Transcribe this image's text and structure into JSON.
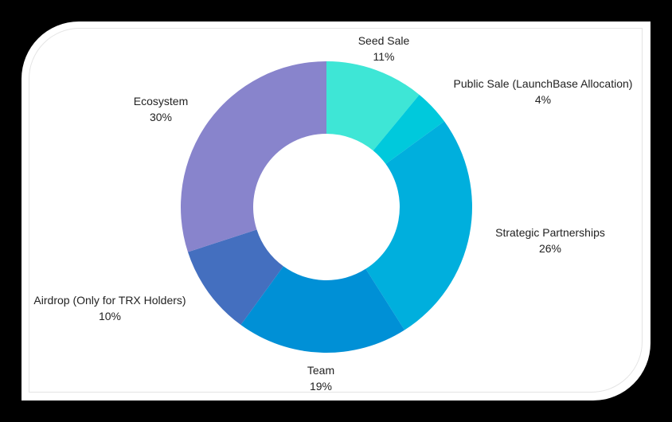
{
  "chart_data": {
    "type": "pie",
    "subtype": "donut",
    "title": "",
    "categories": [
      "Seed Sale",
      "Public Sale (LaunchBase Allocation)",
      "Strategic Partnerships",
      "Team",
      "Airdrop (Only for TRX Holders)",
      "Ecosystem"
    ],
    "values": [
      11,
      4,
      26,
      19,
      10,
      30
    ],
    "value_labels": [
      "11%",
      "4%",
      "26%",
      "19%",
      "10%",
      "30%"
    ],
    "colors": [
      "#3ee6d6",
      "#00c9dc",
      "#00afdd",
      "#0090d6",
      "#446fbf",
      "#8884cc"
    ],
    "legend": "none",
    "start_angle_deg": 0,
    "direction": "clockwise"
  },
  "slices": [
    {
      "label": "Seed Sale",
      "pct": "11%"
    },
    {
      "label": "Public Sale (LaunchBase Allocation)",
      "pct": "4%"
    },
    {
      "label": "Strategic Partnerships",
      "pct": "26%"
    },
    {
      "label": "Team",
      "pct": "19%"
    },
    {
      "label": "Airdrop (Only for TRX Holders)",
      "pct": "10%"
    },
    {
      "label": "Ecosystem",
      "pct": "30%"
    }
  ]
}
